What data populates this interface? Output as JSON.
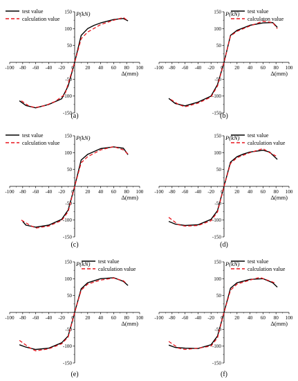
{
  "chart_data": [
    {
      "panel": "(a)",
      "type": "line",
      "xlabel": "Δ(mm)",
      "ylabel": "P(kN)",
      "xlim": [
        -100,
        100
      ],
      "ylim": [
        -150,
        150
      ],
      "xticks": [
        -100,
        -80,
        -60,
        -40,
        -20,
        0,
        20,
        40,
        60,
        80,
        100
      ],
      "yticks": [
        -150,
        -100,
        -50,
        0,
        50,
        100,
        150
      ],
      "legend_position": "top-left",
      "series": [
        {
          "name": "test value",
          "color": "#000000",
          "style": "solid",
          "x": [
            -85,
            -75,
            -60,
            -40,
            -20,
            -10,
            0,
            10,
            20,
            30,
            40,
            60,
            75,
            82
          ],
          "y": [
            -114,
            -128,
            -135,
            -125,
            -108,
            -70,
            0,
            80,
            100,
            110,
            117,
            127,
            130,
            123
          ]
        },
        {
          "name": "calculation value",
          "color": "#e8141c",
          "style": "dashed",
          "x": [
            -82,
            -70,
            -60,
            -45,
            -30,
            -15,
            0,
            10,
            20,
            40,
            60,
            75,
            82
          ],
          "y": [
            -114,
            -130,
            -134,
            -128,
            -116,
            -95,
            0,
            70,
            90,
            112,
            125,
            133,
            123
          ]
        }
      ]
    },
    {
      "panel": "(b)",
      "type": "line",
      "xlabel": "Δ(mm)",
      "ylabel": "P(kN)",
      "xlim": [
        -100,
        100
      ],
      "ylim": [
        -150,
        150
      ],
      "xticks": [
        -100,
        -80,
        -60,
        -40,
        -20,
        0,
        20,
        40,
        60,
        80,
        100
      ],
      "yticks": [
        -150,
        -100,
        -50,
        0,
        50,
        100,
        150
      ],
      "legend_position": "top-right",
      "series": [
        {
          "name": "test value",
          "color": "#000000",
          "style": "solid",
          "x": [
            -85,
            -75,
            -60,
            -40,
            -20,
            -10,
            0,
            10,
            20,
            40,
            60,
            75,
            82
          ],
          "y": [
            -107,
            -122,
            -129,
            -118,
            -100,
            -66,
            0,
            80,
            95,
            110,
            117,
            118,
            104
          ]
        },
        {
          "name": "calculaton value",
          "color": "#e8141c",
          "style": "dashed",
          "x": [
            -82,
            -70,
            -60,
            -40,
            -20,
            -10,
            0,
            10,
            20,
            40,
            60,
            75,
            82
          ],
          "y": [
            -110,
            -125,
            -132,
            -121,
            -103,
            -70,
            0,
            78,
            92,
            108,
            122,
            118,
            100
          ]
        }
      ]
    },
    {
      "panel": "(c)",
      "type": "line",
      "xlabel": "Δ(mm)",
      "ylabel": "P(kN)",
      "xlim": [
        -100,
        100
      ],
      "ylim": [
        -150,
        150
      ],
      "xticks": [
        -100,
        -80,
        -60,
        -40,
        -20,
        0,
        20,
        40,
        60,
        80,
        100
      ],
      "yticks": [
        -150,
        -100,
        -50,
        0,
        50,
        100,
        150
      ],
      "legend_position": "top-left",
      "series": [
        {
          "name": "test value",
          "color": "#000000",
          "style": "solid",
          "x": [
            -80,
            -75,
            -60,
            -40,
            -20,
            -10,
            0,
            10,
            20,
            40,
            60,
            75,
            82
          ],
          "y": [
            -104,
            -115,
            -121,
            -115,
            -98,
            -70,
            0,
            78,
            95,
            112,
            117,
            113,
            94
          ]
        },
        {
          "name": "calculation value",
          "color": "#e8141c",
          "style": "dashed",
          "x": [
            -82,
            -70,
            -60,
            -40,
            -20,
            -10,
            0,
            10,
            20,
            40,
            60,
            75,
            82
          ],
          "y": [
            -100,
            -114,
            -124,
            -118,
            -101,
            -75,
            0,
            70,
            88,
            108,
            118,
            108,
            96
          ]
        }
      ]
    },
    {
      "panel": "(d)",
      "type": "line",
      "xlabel": "Δ(mm)",
      "ylabel": "P(kN)",
      "xlim": [
        -100,
        100
      ],
      "ylim": [
        -150,
        150
      ],
      "xticks": [
        -100,
        -80,
        -60,
        -40,
        -20,
        0,
        20,
        40,
        60,
        80,
        100
      ],
      "yticks": [
        -150,
        -100,
        -50,
        0,
        50,
        100,
        150
      ],
      "legend_position": "top-right",
      "series": [
        {
          "name": "test value",
          "color": "#000000",
          "style": "solid",
          "x": [
            -85,
            -75,
            -60,
            -40,
            -20,
            -10,
            0,
            10,
            20,
            30,
            40,
            60,
            70,
            82
          ],
          "y": [
            -104,
            -112,
            -116,
            -114,
            -98,
            -72,
            0,
            72,
            88,
            96,
            102,
            107,
            102,
            80
          ]
        },
        {
          "name": "calculation value",
          "color": "#e8141c",
          "style": "dashed",
          "x": [
            -85,
            -70,
            -60,
            -40,
            -20,
            -10,
            0,
            10,
            20,
            40,
            60,
            70,
            80
          ],
          "y": [
            -92,
            -114,
            -118,
            -116,
            -102,
            -76,
            0,
            68,
            85,
            100,
            112,
            100,
            90
          ]
        }
      ]
    },
    {
      "panel": "(e)",
      "type": "line",
      "xlabel": "Δ(mm)",
      "ylabel": "P(kN)",
      "xlim": [
        -100,
        100
      ],
      "ylim": [
        -150,
        150
      ],
      "xticks": [
        -100,
        -80,
        -60,
        -40,
        -20,
        0,
        20,
        40,
        60,
        80,
        100
      ],
      "yticks": [
        -150,
        -100,
        -50,
        0,
        50,
        100,
        150
      ],
      "legend_position": "top-right",
      "series": [
        {
          "name": "test value",
          "color": "#000000",
          "style": "solid",
          "x": [
            -85,
            -75,
            -60,
            -40,
            -20,
            -10,
            0,
            10,
            20,
            40,
            60,
            75,
            82
          ],
          "y": [
            -96,
            -103,
            -110,
            -106,
            -90,
            -70,
            0,
            70,
            88,
            100,
            103,
            92,
            80
          ]
        },
        {
          "name": "calculation value",
          "color": "#e8141c",
          "style": "dashed",
          "x": [
            -85,
            -70,
            -60,
            -40,
            -20,
            -10,
            0,
            10,
            20,
            40,
            60,
            75,
            80
          ],
          "y": [
            -83,
            -104,
            -114,
            -108,
            -93,
            -73,
            0,
            66,
            84,
            96,
            102,
            94,
            85
          ]
        }
      ]
    },
    {
      "panel": "(f)",
      "type": "line",
      "xlabel": "Δ(mm)",
      "ylabel": "P(kN)",
      "xlim": [
        -100,
        100
      ],
      "ylim": [
        -150,
        150
      ],
      "xticks": [
        -100,
        -80,
        -60,
        -40,
        -20,
        0,
        20,
        40,
        60,
        80,
        100
      ],
      "yticks": [
        -150,
        -100,
        -50,
        0,
        50,
        100,
        150
      ],
      "legend_position": "top-right",
      "series": [
        {
          "name": "test value",
          "color": "#000000",
          "style": "solid",
          "x": [
            -85,
            -75,
            -60,
            -40,
            -20,
            -10,
            0,
            10,
            20,
            40,
            60,
            75,
            82
          ],
          "y": [
            -97,
            -104,
            -106,
            -107,
            -96,
            -70,
            0,
            72,
            88,
            98,
            100,
            88,
            75
          ]
        },
        {
          "name": "calculation value",
          "color": "#e8141c",
          "style": "dashed",
          "x": [
            -85,
            -70,
            -60,
            -40,
            -20,
            -10,
            0,
            10,
            20,
            40,
            55,
            75,
            80
          ],
          "y": [
            -86,
            -106,
            -110,
            -106,
            -100,
            -75,
            0,
            66,
            84,
            96,
            104,
            90,
            86
          ]
        }
      ]
    }
  ]
}
